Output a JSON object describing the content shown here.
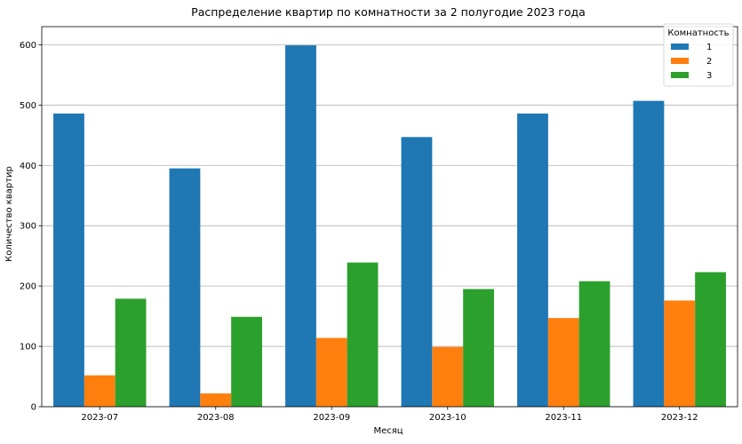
{
  "chart_data": {
    "type": "bar",
    "title": "Распределение квартир по комнатности за 2 полугодие 2023 года",
    "xlabel": "Месяц",
    "ylabel": "Количество квартир",
    "categories": [
      "2023-07",
      "2023-08",
      "2023-09",
      "2023-10",
      "2023-11",
      "2023-12"
    ],
    "ylim": [
      0,
      630
    ],
    "yticks": [
      0,
      100,
      200,
      300,
      400,
      500,
      600
    ],
    "grid": "horizontal",
    "legend": {
      "title": "Комнатность",
      "placement": "top-right"
    },
    "series": [
      {
        "name": "1",
        "color": "#1f77b4",
        "values": [
          486,
          395,
          599,
          447,
          486,
          507
        ]
      },
      {
        "name": "2",
        "color": "#ff7f0e",
        "values": [
          52,
          22,
          114,
          99,
          147,
          176
        ]
      },
      {
        "name": "3",
        "color": "#2ca02c",
        "values": [
          179,
          149,
          239,
          195,
          208,
          223
        ]
      }
    ]
  }
}
